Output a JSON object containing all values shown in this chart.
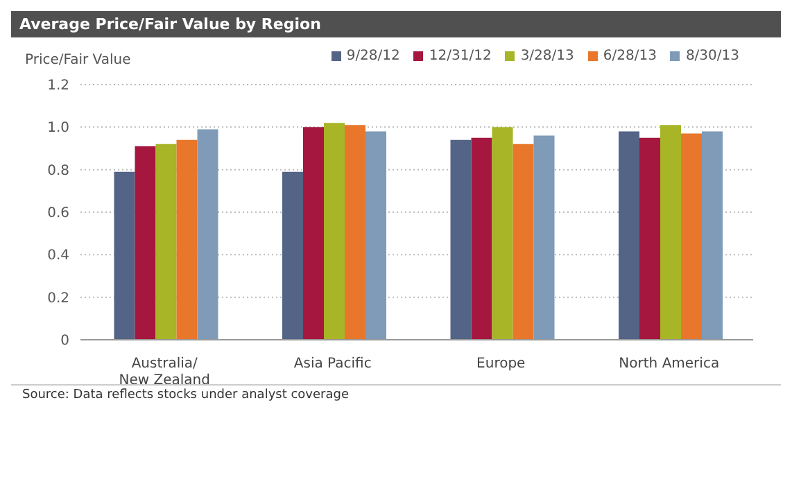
{
  "chart_data": {
    "type": "bar",
    "title": "Average Price/Fair Value by Region",
    "ylabel": "Price/Fair Value",
    "categories": [
      "Australia/ New Zealand",
      "Asia Pacific",
      "Europe",
      "North America"
    ],
    "series": [
      {
        "name": "9/28/12",
        "color": "#536487",
        "values": [
          0.79,
          0.79,
          0.94,
          0.98
        ]
      },
      {
        "name": "12/31/12",
        "color": "#a5173f",
        "values": [
          0.91,
          1.0,
          0.95,
          0.95
        ]
      },
      {
        "name": "3/28/13",
        "color": "#a7b526",
        "values": [
          0.92,
          1.02,
          1.0,
          1.01
        ]
      },
      {
        "name": "6/28/13",
        "color": "#e8772b",
        "values": [
          0.94,
          1.01,
          0.92,
          0.97
        ]
      },
      {
        "name": "8/30/13",
        "color": "#7f9bb8",
        "values": [
          0.99,
          0.98,
          0.96,
          0.98
        ]
      }
    ],
    "ylim": [
      0,
      1.2
    ],
    "yticks": [
      0,
      0.2,
      0.4,
      0.6,
      0.8,
      {
        "value": 1,
        "label": "1.0"
      },
      1.2
    ],
    "grid": "y",
    "legend": "top right",
    "annotations": [
      "Source: Data reflects stocks under analyst coverage"
    ]
  }
}
